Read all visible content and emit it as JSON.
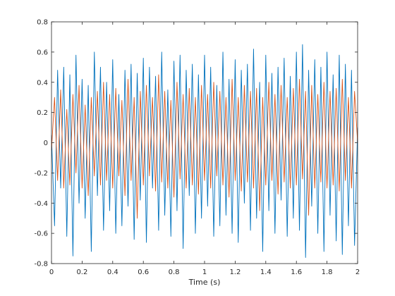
{
  "figure": {
    "background": "#ffffff"
  },
  "chart_data": {
    "type": "line",
    "title": "",
    "xlabel": "Time (s)",
    "ylabel": "",
    "xlim": [
      0,
      2
    ],
    "ylim": [
      -0.8,
      0.8
    ],
    "xticks": [
      0,
      0.2,
      0.4,
      0.6,
      0.8,
      1,
      1.2,
      1.4,
      1.6,
      1.8,
      2
    ],
    "xtick_labels": [
      "0",
      "0.2",
      "0.4",
      "0.6",
      "0.8",
      "1",
      "1.2",
      "1.4",
      "1.6",
      "1.8",
      "2"
    ],
    "yticks": [
      -0.8,
      -0.6,
      -0.4,
      -0.2,
      0,
      0.2,
      0.4,
      0.6,
      0.8
    ],
    "ytick_labels": [
      "-0.8",
      "-0.6",
      "-0.4",
      "-0.2",
      "0",
      "0.2",
      "0.4",
      "0.6",
      "0.8"
    ],
    "grid": false,
    "legend": "none",
    "series": [
      {
        "color": "#0072BD",
        "x": [
          0,
          0.02,
          0.04,
          0.06,
          0.08,
          0.1,
          0.12,
          0.14,
          0.16,
          0.18,
          0.2,
          0.22,
          0.24,
          0.26,
          0.28,
          0.3,
          0.32,
          0.34,
          0.36,
          0.38,
          0.4,
          0.42,
          0.44,
          0.46,
          0.48,
          0.5,
          0.52,
          0.54,
          0.56,
          0.58,
          0.6,
          0.62,
          0.64,
          0.66,
          0.68,
          0.7,
          0.72,
          0.74,
          0.76,
          0.78,
          0.8,
          0.82,
          0.84,
          0.86,
          0.88,
          0.9,
          0.92,
          0.94,
          0.96,
          0.98,
          1,
          1.02,
          1.04,
          1.06,
          1.08,
          1.1,
          1.12,
          1.14,
          1.16,
          1.18,
          1.2,
          1.22,
          1.24,
          1.26,
          1.28,
          1.3,
          1.32,
          1.34,
          1.36,
          1.38,
          1.4,
          1.42,
          1.44,
          1.46,
          1.48,
          1.5,
          1.52,
          1.54,
          1.56,
          1.58,
          1.6,
          1.62,
          1.64,
          1.66,
          1.68,
          1.7,
          1.72,
          1.74,
          1.76,
          1.78,
          1.8,
          1.82,
          1.84,
          1.86,
          1.88,
          1.9,
          1.92,
          1.94,
          1.96,
          1.98,
          2
        ],
        "y": [
          0.05,
          -0.55,
          0.48,
          -0.3,
          0.5,
          -0.62,
          0.45,
          -0.75,
          0.58,
          -0.4,
          0.42,
          -0.5,
          0.38,
          -0.72,
          0.6,
          -0.35,
          0.5,
          -0.58,
          0.4,
          -0.45,
          0.55,
          -0.6,
          0.32,
          -0.55,
          0.48,
          -0.42,
          0.52,
          -0.64,
          0.46,
          -0.38,
          0.56,
          -0.66,
          0.5,
          -0.3,
          0.44,
          -0.58,
          0.6,
          -0.48,
          0.35,
          -0.62,
          0.54,
          -0.45,
          0.58,
          -0.7,
          0.48,
          -0.35,
          0.52,
          -0.6,
          0.45,
          -0.5,
          0.58,
          -0.42,
          0.5,
          -0.62,
          0.38,
          -0.55,
          0.6,
          -0.48,
          0.42,
          -0.6,
          0.55,
          -0.66,
          0.48,
          -0.4,
          0.52,
          -0.58,
          0.62,
          -0.5,
          0.4,
          -0.72,
          0.58,
          -0.45,
          0.46,
          -0.6,
          0.5,
          -0.38,
          0.56,
          -0.62,
          0.44,
          -0.5,
          0.6,
          -0.58,
          0.65,
          -0.76,
          0.48,
          -0.42,
          0.55,
          -0.6,
          0.5,
          -0.72,
          0.6,
          -0.48,
          0.45,
          -0.65,
          0.58,
          -0.74,
          0.52,
          -0.55,
          0.48,
          -0.68,
          0.1
        ]
      },
      {
        "color": "#D95319",
        "x": [
          0,
          0.02,
          0.04,
          0.06,
          0.08,
          0.1,
          0.12,
          0.14,
          0.16,
          0.18,
          0.2,
          0.22,
          0.24,
          0.26,
          0.28,
          0.3,
          0.32,
          0.34,
          0.36,
          0.38,
          0.4,
          0.42,
          0.44,
          0.46,
          0.48,
          0.5,
          0.52,
          0.54,
          0.56,
          0.58,
          0.6,
          0.62,
          0.64,
          0.66,
          0.68,
          0.7,
          0.72,
          0.74,
          0.76,
          0.78,
          0.8,
          0.82,
          0.84,
          0.86,
          0.88,
          0.9,
          0.92,
          0.94,
          0.96,
          0.98,
          1,
          1.02,
          1.04,
          1.06,
          1.08,
          1.1,
          1.12,
          1.14,
          1.16,
          1.18,
          1.2,
          1.22,
          1.24,
          1.26,
          1.28,
          1.3,
          1.32,
          1.34,
          1.36,
          1.38,
          1.4,
          1.42,
          1.44,
          1.46,
          1.48,
          1.5,
          1.52,
          1.54,
          1.56,
          1.58,
          1.6,
          1.62,
          1.64,
          1.66,
          1.68,
          1.7,
          1.72,
          1.74,
          1.76,
          1.78,
          1.8,
          1.82,
          1.84,
          1.86,
          1.88,
          1.9,
          1.92,
          1.94,
          1.96,
          1.98,
          2
        ],
        "y": [
          -0.05,
          0.3,
          -0.25,
          0.35,
          -0.3,
          0.22,
          -0.28,
          0.32,
          -0.2,
          0.38,
          -0.3,
          0.25,
          -0.35,
          0.3,
          -0.22,
          0.34,
          -0.28,
          0.4,
          -0.25,
          0.32,
          -0.3,
          0.36,
          -0.22,
          0.28,
          -0.35,
          0.42,
          -0.25,
          0.3,
          -0.5,
          0.34,
          -0.28,
          0.38,
          -0.22,
          0.3,
          -0.32,
          0.45,
          -0.26,
          0.34,
          -0.3,
          0.28,
          -0.36,
          0.4,
          -0.24,
          0.32,
          -0.3,
          0.36,
          -0.28,
          0.3,
          -0.34,
          0.38,
          -0.25,
          0.32,
          -0.3,
          0.4,
          -0.22,
          0.34,
          -0.28,
          0.3,
          -0.36,
          0.42,
          -0.25,
          0.3,
          -0.32,
          0.38,
          -0.26,
          0.34,
          -0.3,
          0.36,
          -0.45,
          0.3,
          -0.28,
          0.4,
          -0.25,
          0.32,
          -0.34,
          0.38,
          -0.26,
          0.3,
          -0.3,
          0.36,
          -0.28,
          0.42,
          -0.24,
          0.34,
          -0.48,
          0.38,
          -0.3,
          0.32,
          -0.26,
          0.4,
          -0.3,
          0.34,
          -0.28,
          0.36,
          -0.32,
          0.42,
          -0.25,
          0.3,
          -0.3,
          0.34,
          0
        ]
      }
    ]
  }
}
